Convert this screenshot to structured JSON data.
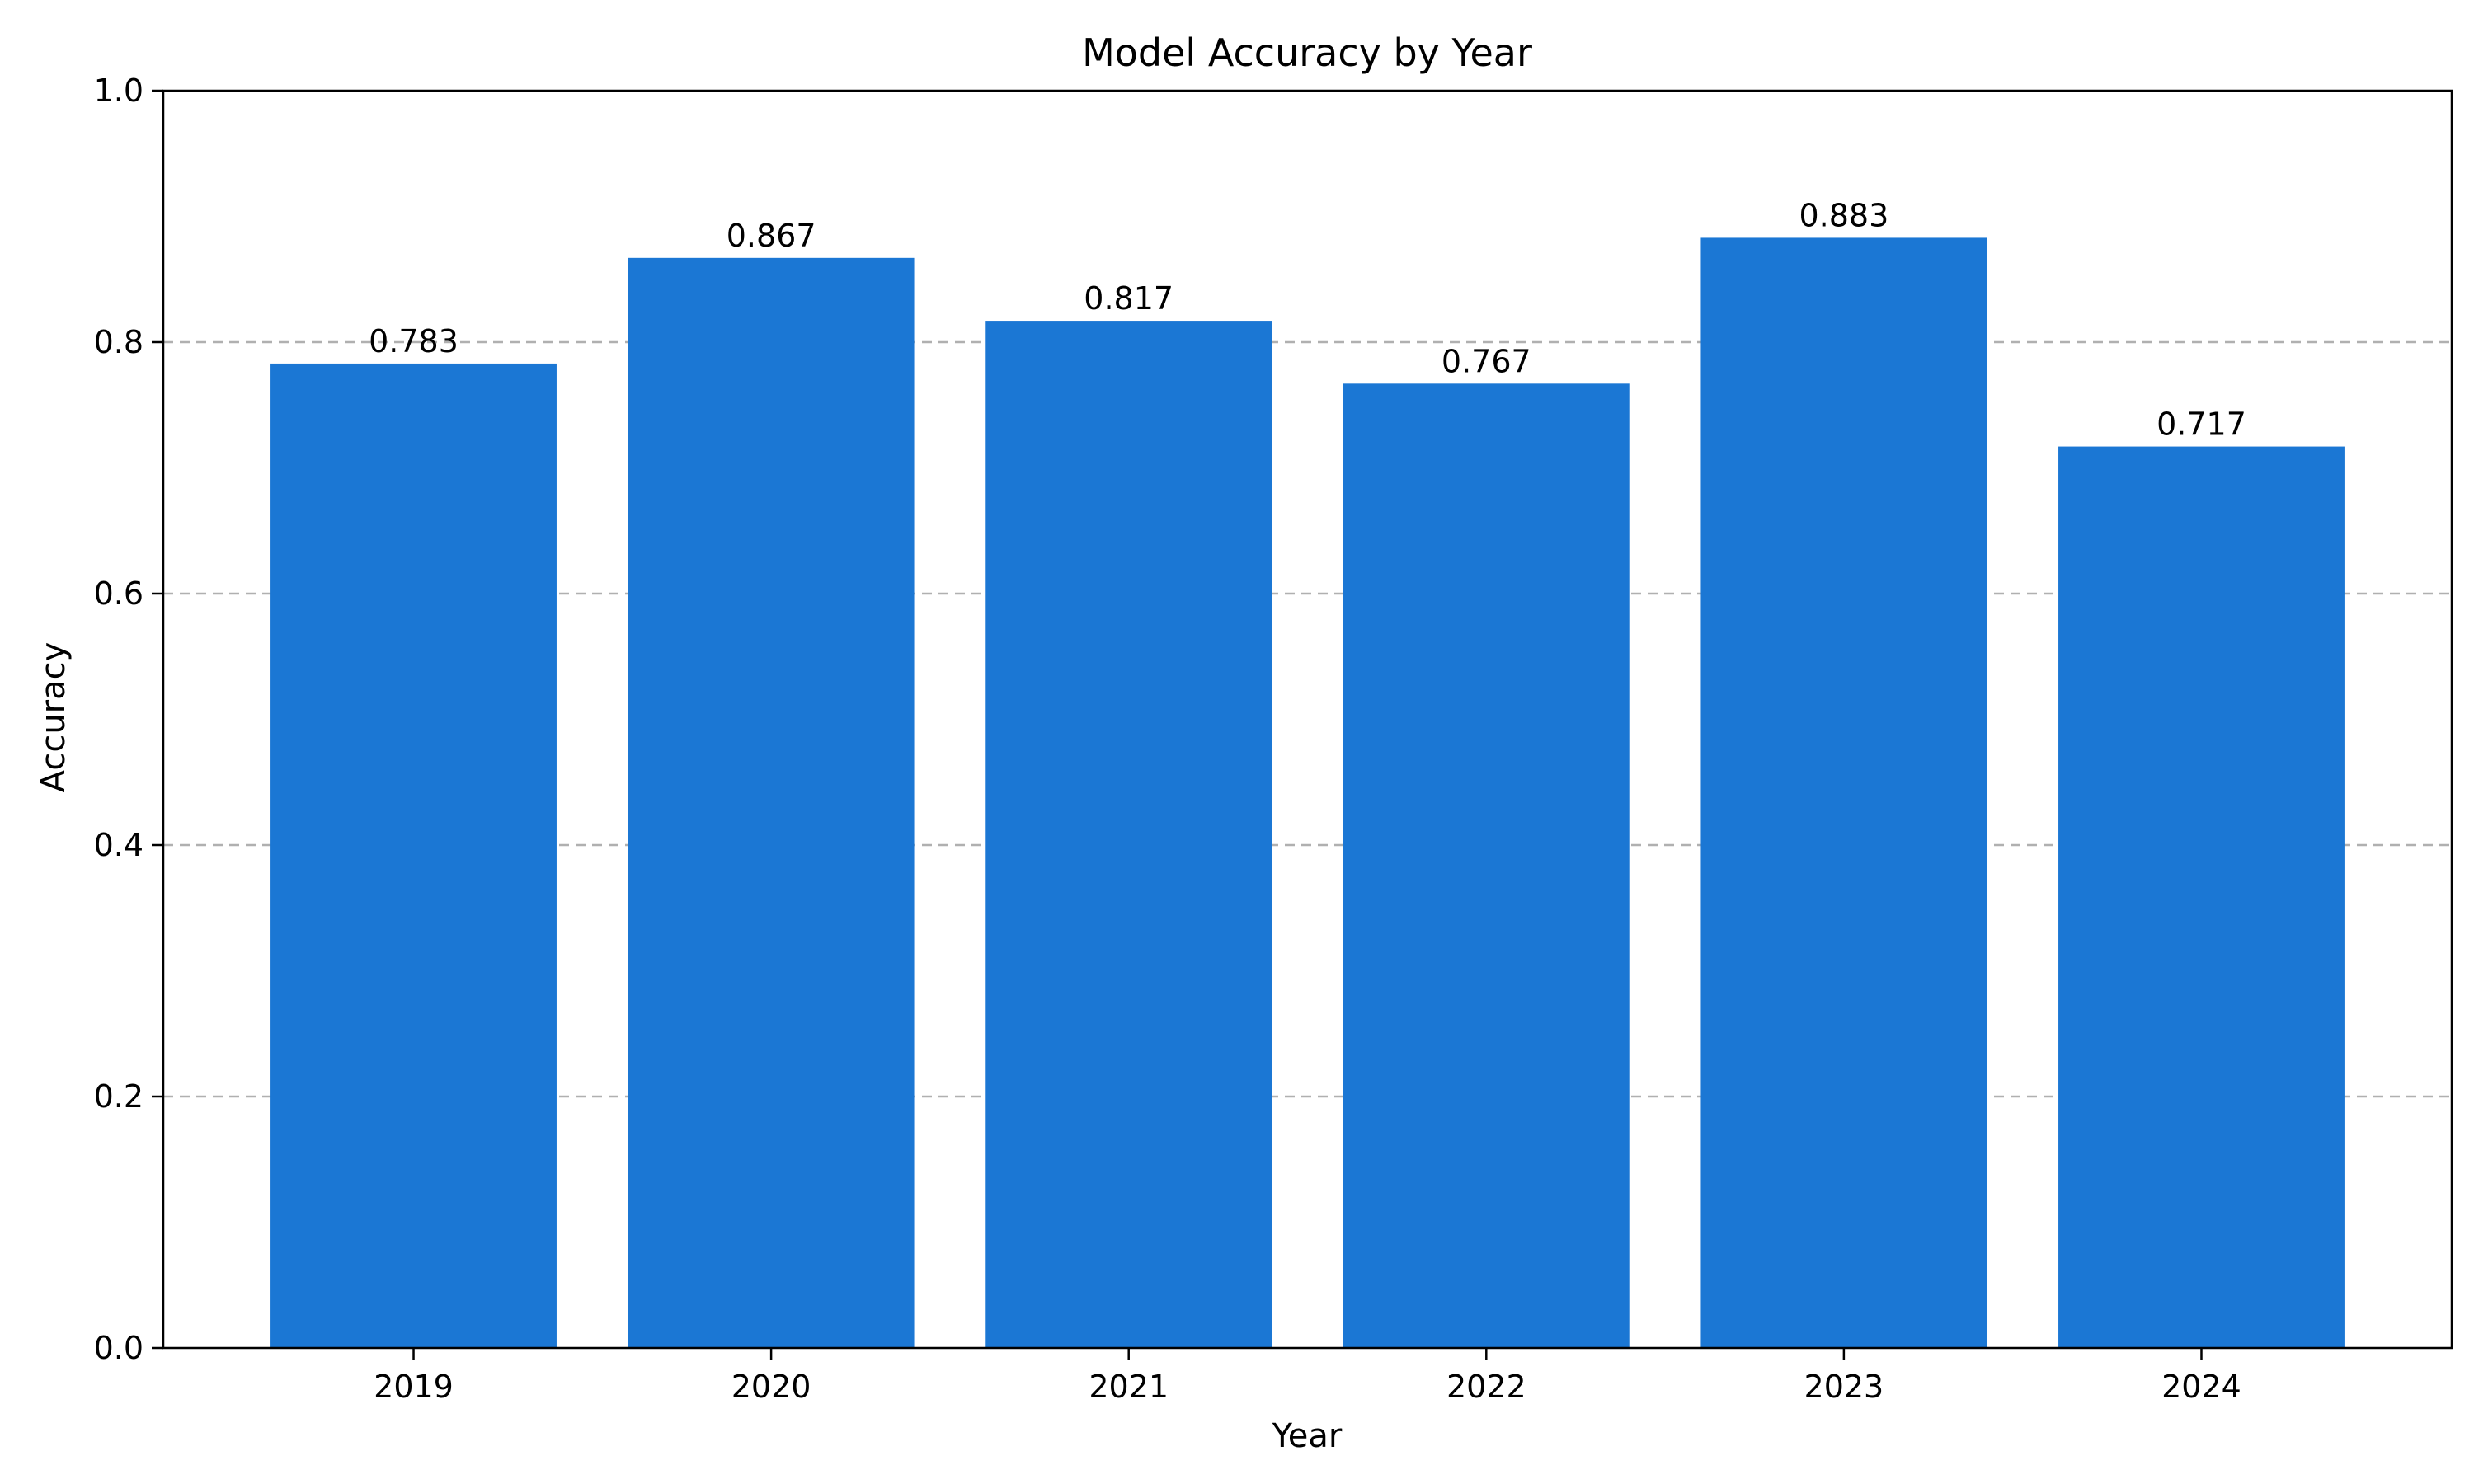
{
  "chart_data": {
    "type": "bar",
    "title": "Model Accuracy by Year",
    "xlabel": "Year",
    "ylabel": "Accuracy",
    "categories": [
      "2019",
      "2020",
      "2021",
      "2022",
      "2023",
      "2024"
    ],
    "values": [
      0.783,
      0.867,
      0.817,
      0.767,
      0.883,
      0.717
    ],
    "value_labels": [
      "0.783",
      "0.867",
      "0.817",
      "0.767",
      "0.883",
      "0.717"
    ],
    "ylim": [
      0,
      1.0
    ],
    "yticks": [
      0.0,
      0.2,
      0.4,
      0.6,
      0.8,
      1.0
    ],
    "ytick_labels": [
      "0.0",
      "0.2",
      "0.4",
      "0.6",
      "0.8",
      "1.0"
    ],
    "grid": "y-dashed",
    "legend": "none",
    "bar_color": "#1b77d4",
    "grid_color": "#b0b0b0"
  }
}
